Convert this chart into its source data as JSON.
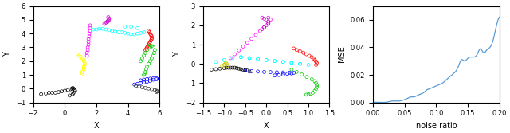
{
  "panel1": {
    "xlim": [
      -2,
      6
    ],
    "ylim": [
      -1,
      6
    ],
    "xticks": [
      -2,
      0,
      2,
      4,
      6
    ],
    "yticks": [
      -1,
      0,
      1,
      2,
      3,
      4,
      5,
      6
    ],
    "xlabel": "X",
    "ylabel": "Y",
    "clusters": [
      {
        "color": "#000000",
        "pts_x": [
          -1.5,
          -1.2,
          -1.0,
          -0.8,
          -0.6,
          -0.4,
          -0.2,
          0.0,
          0.2,
          0.35,
          0.45,
          0.5,
          0.55,
          0.6,
          0.65,
          0.55,
          0.5,
          0.3
        ],
        "pts_y": [
          -0.4,
          -0.35,
          -0.3,
          -0.3,
          -0.3,
          -0.25,
          -0.2,
          -0.15,
          -0.1,
          -0.05,
          0.0,
          0.05,
          0.0,
          -0.1,
          -0.15,
          -0.3,
          -0.4,
          -0.5
        ]
      },
      {
        "color": "#FFFF00",
        "pts_x": [
          1.1,
          1.1,
          1.15,
          1.2,
          1.2,
          1.2,
          1.25,
          1.25,
          1.25,
          1.2,
          1.2,
          1.1,
          1.0,
          0.9,
          0.8
        ],
        "pts_y": [
          1.1,
          1.2,
          1.3,
          1.4,
          1.5,
          1.6,
          1.7,
          1.8,
          1.9,
          2.0,
          2.1,
          2.2,
          2.3,
          2.4,
          2.5
        ]
      },
      {
        "color": "#FF00FF",
        "pts_x": [
          1.4,
          1.4,
          1.45,
          1.45,
          1.5,
          1.5,
          1.5,
          1.55,
          1.55,
          1.6,
          1.6,
          1.6
        ],
        "pts_y": [
          2.4,
          2.6,
          2.8,
          3.0,
          3.2,
          3.4,
          3.6,
          3.8,
          4.0,
          4.2,
          4.4,
          4.6
        ]
      },
      {
        "color": "#00FFFF",
        "pts_x": [
          1.8,
          2.0,
          2.2,
          2.4,
          2.6,
          2.8,
          3.0,
          3.2,
          3.4,
          3.6,
          3.8,
          4.0,
          4.2,
          4.4,
          4.6,
          4.8,
          5.0,
          4.6,
          4.2,
          3.8
        ],
        "pts_y": [
          4.3,
          4.3,
          4.35,
          4.35,
          4.3,
          4.25,
          4.2,
          4.15,
          4.1,
          4.1,
          4.05,
          4.0,
          3.95,
          3.95,
          4.0,
          4.05,
          4.1,
          4.4,
          4.5,
          4.5
        ]
      },
      {
        "color": "#CC00CC",
        "pts_x": [
          2.5,
          2.6,
          2.7,
          2.7,
          2.75,
          2.8,
          2.8,
          2.75
        ],
        "pts_y": [
          4.7,
          4.8,
          4.85,
          4.9,
          4.95,
          5.0,
          5.1,
          5.2
        ]
      },
      {
        "color": "#FF0000",
        "pts_x": [
          5.1,
          5.15,
          5.2,
          5.25,
          5.3,
          5.35,
          5.4,
          5.45,
          5.5,
          5.5,
          5.5,
          5.45,
          5.4,
          5.35,
          5.3
        ],
        "pts_y": [
          2.8,
          2.9,
          3.0,
          3.1,
          3.2,
          3.3,
          3.4,
          3.5,
          3.6,
          3.7,
          3.8,
          3.9,
          4.0,
          4.1,
          4.2
        ]
      },
      {
        "color": "#00CC00",
        "pts_x": [
          5.0,
          5.05,
          5.1,
          5.15,
          5.2,
          5.3,
          5.4,
          5.5,
          5.6,
          5.65,
          5.7,
          5.6,
          5.5,
          5.4,
          5.3,
          5.2,
          5.1,
          5.0,
          4.9,
          4.8
        ],
        "pts_y": [
          1.0,
          1.1,
          1.2,
          1.4,
          1.6,
          1.8,
          2.0,
          2.2,
          2.4,
          2.6,
          2.8,
          3.0,
          3.1,
          3.15,
          3.0,
          2.8,
          2.6,
          2.4,
          2.2,
          2.0
        ]
      },
      {
        "color": "#0000FF",
        "pts_x": [
          4.8,
          5.0,
          5.2,
          5.4,
          5.6,
          5.8,
          6.0,
          5.8,
          5.6,
          5.4,
          5.2,
          5.0,
          4.8,
          4.6,
          4.4
        ],
        "pts_y": [
          0.6,
          0.65,
          0.7,
          0.72,
          0.75,
          0.75,
          0.72,
          0.68,
          0.65,
          0.55,
          0.5,
          0.45,
          0.4,
          0.35,
          0.3
        ]
      },
      {
        "color": "#333333",
        "pts_x": [
          4.5,
          4.7,
          4.9,
          5.1,
          5.3,
          5.5,
          5.7,
          5.8,
          5.85,
          5.8
        ],
        "pts_y": [
          0.2,
          0.15,
          0.1,
          0.05,
          0.0,
          -0.05,
          -0.1,
          -0.15,
          -0.2,
          -0.25
        ]
      }
    ]
  },
  "panel2": {
    "xlim": [
      -1.5,
      1.5
    ],
    "ylim": [
      -2,
      3
    ],
    "xticks": [
      -1.5,
      -1.0,
      -0.5,
      0.0,
      0.5,
      1.0,
      1.5
    ],
    "yticks": [
      -2,
      -1,
      0,
      1,
      2,
      3
    ],
    "xlabel": "X",
    "ylabel": "Y",
    "clusters": [
      {
        "color": "#000000",
        "pts_x": [
          -1.3,
          -1.2,
          -1.1,
          -1.0,
          -0.95,
          -0.9,
          -0.85,
          -0.8,
          -0.75,
          -0.7,
          -0.65,
          -0.6,
          -0.55,
          -0.5,
          -0.45,
          -0.4
        ],
        "pts_y": [
          -0.3,
          -0.28,
          -0.25,
          -0.22,
          -0.2,
          -0.2,
          -0.2,
          -0.2,
          -0.2,
          -0.22,
          -0.25,
          -0.28,
          -0.3,
          -0.32,
          -0.35,
          -0.4
        ]
      },
      {
        "color": "#CCCC00",
        "pts_x": [
          -1.05,
          -1.0,
          -0.98,
          -0.96,
          -0.94,
          -0.92
        ],
        "pts_y": [
          -0.1,
          -0.05,
          0.0,
          0.05,
          0.0,
          -0.1
        ]
      },
      {
        "color": "#FF00FF",
        "pts_x": [
          -0.85,
          -0.75,
          -0.65,
          -0.55,
          -0.45,
          -0.35,
          -0.25,
          -0.15,
          -0.05,
          0.05,
          0.1,
          0.05
        ],
        "pts_y": [
          0.3,
          0.5,
          0.7,
          0.9,
          1.1,
          1.3,
          1.5,
          1.7,
          1.9,
          2.1,
          2.3,
          2.4
        ]
      },
      {
        "color": "#00FFFF",
        "pts_x": [
          -0.6,
          -0.4,
          -0.2,
          0.0,
          0.2,
          0.4,
          0.6,
          0.8,
          1.0,
          0.8,
          0.6,
          0.4,
          0.2,
          0.0,
          -0.2,
          -0.4,
          -0.6,
          -0.8,
          -1.0,
          -1.2
        ],
        "pts_y": [
          0.35,
          0.3,
          0.25,
          0.2,
          0.15,
          0.1,
          0.05,
          0.0,
          -0.05,
          0.0,
          0.05,
          0.1,
          0.15,
          0.2,
          0.25,
          0.3,
          0.35,
          0.3,
          0.2,
          0.1
        ]
      },
      {
        "color": "#FF0000",
        "pts_x": [
          0.65,
          0.72,
          0.8,
          0.88,
          0.95,
          1.02,
          1.08,
          1.12,
          1.15,
          1.18,
          1.2,
          1.18
        ],
        "pts_y": [
          0.8,
          0.72,
          0.65,
          0.58,
          0.5,
          0.42,
          0.35,
          0.28,
          0.2,
          0.12,
          0.05,
          -0.05
        ]
      },
      {
        "color": "#00CC00",
        "pts_x": [
          0.6,
          0.72,
          0.84,
          0.96,
          1.08,
          1.15,
          1.18,
          1.2,
          1.2,
          1.18,
          1.15,
          1.1,
          1.05,
          1.0,
          0.95
        ],
        "pts_y": [
          -0.3,
          -0.42,
          -0.55,
          -0.68,
          -0.8,
          -0.9,
          -1.0,
          -1.1,
          -1.2,
          -1.3,
          -1.4,
          -1.5,
          -1.55,
          -1.58,
          -1.6
        ]
      },
      {
        "color": "#0000FF",
        "pts_x": [
          -0.5,
          -0.35,
          -0.2,
          -0.05,
          0.1,
          0.25,
          0.4,
          0.55,
          0.65,
          0.6,
          0.5,
          0.4,
          0.3,
          0.2
        ],
        "pts_y": [
          -0.35,
          -0.38,
          -0.4,
          -0.42,
          -0.43,
          -0.44,
          -0.45,
          -0.46,
          -0.47,
          -0.5,
          -0.52,
          -0.55,
          -0.58,
          -0.6
        ]
      },
      {
        "color": "#CC00CC",
        "pts_x": [
          -0.1,
          -0.05,
          0.0,
          0.05,
          0.05,
          0.0,
          -0.05,
          -0.1
        ],
        "pts_y": [
          1.8,
          1.9,
          2.0,
          2.1,
          2.2,
          2.3,
          2.35,
          2.4
        ]
      }
    ]
  },
  "panel3": {
    "xlim": [
      0,
      0.2
    ],
    "ylim": [
      0,
      0.07
    ],
    "xticks": [
      0,
      0.05,
      0.1,
      0.15,
      0.2
    ],
    "yticks": [
      0,
      0.02,
      0.04,
      0.06
    ],
    "xlabel": "noise ratio",
    "ylabel": "MSE",
    "line_color": "#5B9BD5",
    "line_width": 0.9,
    "noise_ratio": [
      0.0,
      0.01,
      0.02,
      0.03,
      0.04,
      0.05,
      0.055,
      0.06,
      0.065,
      0.07,
      0.075,
      0.08,
      0.085,
      0.09,
      0.095,
      0.1,
      0.105,
      0.11,
      0.115,
      0.12,
      0.125,
      0.13,
      0.135,
      0.14,
      0.145,
      0.15,
      0.155,
      0.16,
      0.165,
      0.17,
      0.175,
      0.18,
      0.185,
      0.19,
      0.195,
      0.2
    ],
    "mse": [
      0.0,
      0.0,
      0.0,
      0.001,
      0.001,
      0.002,
      0.003,
      0.004,
      0.004,
      0.005,
      0.006,
      0.007,
      0.009,
      0.01,
      0.011,
      0.012,
      0.013,
      0.014,
      0.016,
      0.018,
      0.02,
      0.022,
      0.026,
      0.031,
      0.03,
      0.032,
      0.033,
      0.033,
      0.035,
      0.039,
      0.036,
      0.038,
      0.04,
      0.045,
      0.055,
      0.062
    ]
  }
}
